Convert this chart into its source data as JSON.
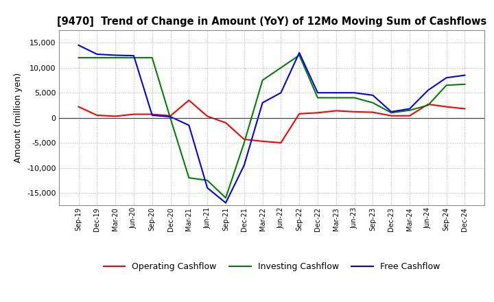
{
  "title": "[9470]  Trend of Change in Amount (YoY) of 12Mo Moving Sum of Cashflows",
  "ylabel": "Amount (million yen)",
  "xlabels": [
    "Sep-19",
    "Dec-19",
    "Mar-20",
    "Jun-20",
    "Sep-20",
    "Dec-20",
    "Mar-21",
    "Jun-21",
    "Sep-21",
    "Dec-21",
    "Mar-22",
    "Jun-22",
    "Sep-22",
    "Dec-22",
    "Mar-23",
    "Jun-23",
    "Sep-23",
    "Dec-23",
    "Mar-24",
    "Jun-24",
    "Sep-24",
    "Dec-24"
  ],
  "operating": [
    2200,
    500,
    300,
    700,
    700,
    400,
    3500,
    300,
    -1000,
    -4300,
    -4700,
    -5000,
    800,
    1000,
    1400,
    1200,
    1100,
    400,
    400,
    2700,
    2200,
    1800
  ],
  "investing": [
    12000,
    12000,
    12000,
    12000,
    12000,
    -200,
    -12000,
    -12500,
    -16000,
    -5000,
    7500,
    10000,
    12500,
    4000,
    4000,
    4000,
    3000,
    1000,
    1500,
    2500,
    6500,
    6700
  ],
  "free": [
    14500,
    12700,
    12500,
    12400,
    500,
    200,
    -1500,
    -14000,
    -17000,
    -9500,
    3000,
    5000,
    13000,
    5000,
    5000,
    5000,
    4500,
    1200,
    1800,
    5500,
    8000,
    8500
  ],
  "operating_color": "#ff0000",
  "investing_color": "#008000",
  "free_color": "#0000ff",
  "ylim": [
    -17500,
    17500
  ],
  "yticks": [
    -15000,
    -10000,
    -5000,
    0,
    5000,
    10000,
    15000
  ],
  "background_color": "#ffffff",
  "grid_color": "#999999"
}
